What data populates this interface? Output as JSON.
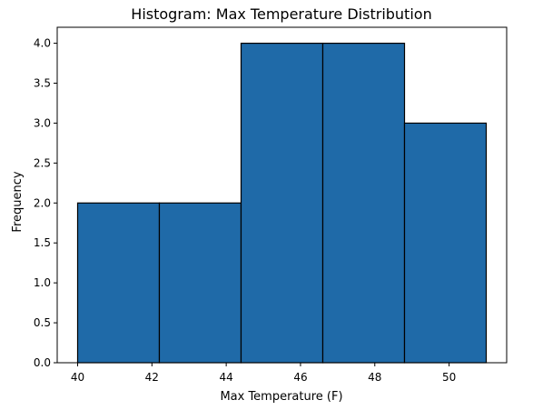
{
  "chart_data": {
    "type": "bar",
    "title": "Histogram: Max Temperature Distribution",
    "xlabel": "Max Temperature (F)",
    "ylabel": "Frequency",
    "bins": [
      {
        "start": 40.0,
        "end": 42.2,
        "count": 2
      },
      {
        "start": 42.2,
        "end": 44.4,
        "count": 2
      },
      {
        "start": 44.4,
        "end": 46.6,
        "count": 4
      },
      {
        "start": 46.6,
        "end": 48.8,
        "count": 4
      },
      {
        "start": 48.8,
        "end": 51.0,
        "count": 3
      }
    ],
    "xlim": [
      39.45,
      51.55
    ],
    "ylim": [
      0,
      4.2
    ],
    "xticks": [
      40,
      42,
      44,
      46,
      48,
      50
    ],
    "yticks": [
      0.0,
      0.5,
      1.0,
      1.5,
      2.0,
      2.5,
      3.0,
      3.5,
      4.0
    ],
    "grid": false,
    "bar_color": "#1f6aa8",
    "edge_color": "#000000"
  }
}
